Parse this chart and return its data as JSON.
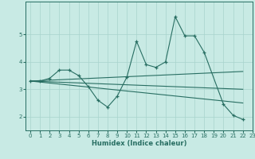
{
  "bg_color": "#c8eae4",
  "grid_color": "#a8d4cc",
  "line_color": "#286e62",
  "xlabel": "Humidex (Indice chaleur)",
  "xlim": [
    -0.5,
    23
  ],
  "ylim": [
    1.5,
    6.2
  ],
  "yticks": [
    2,
    3,
    4,
    5
  ],
  "xticks": [
    0,
    1,
    2,
    3,
    4,
    5,
    6,
    7,
    8,
    9,
    10,
    11,
    12,
    13,
    14,
    15,
    16,
    17,
    18,
    19,
    20,
    21,
    22,
    23
  ],
  "series": [
    {
      "x": [
        0,
        1,
        2,
        3,
        4,
        5,
        6,
        7,
        8,
        9,
        10,
        11,
        12,
        13,
        14,
        15,
        16,
        17,
        18,
        20,
        21,
        22
      ],
      "y": [
        3.3,
        3.3,
        3.4,
        3.7,
        3.7,
        3.5,
        3.1,
        2.6,
        2.35,
        2.75,
        3.45,
        4.75,
        3.9,
        3.8,
        4.0,
        5.65,
        4.95,
        4.95,
        4.35,
        2.45,
        2.05,
        1.9
      ],
      "has_markers": true
    },
    {
      "x": [
        0,
        22
      ],
      "y": [
        3.3,
        3.65
      ],
      "has_markers": false
    },
    {
      "x": [
        0,
        22
      ],
      "y": [
        3.3,
        3.0
      ],
      "has_markers": false
    },
    {
      "x": [
        0,
        22
      ],
      "y": [
        3.3,
        2.5
      ],
      "has_markers": false
    }
  ]
}
